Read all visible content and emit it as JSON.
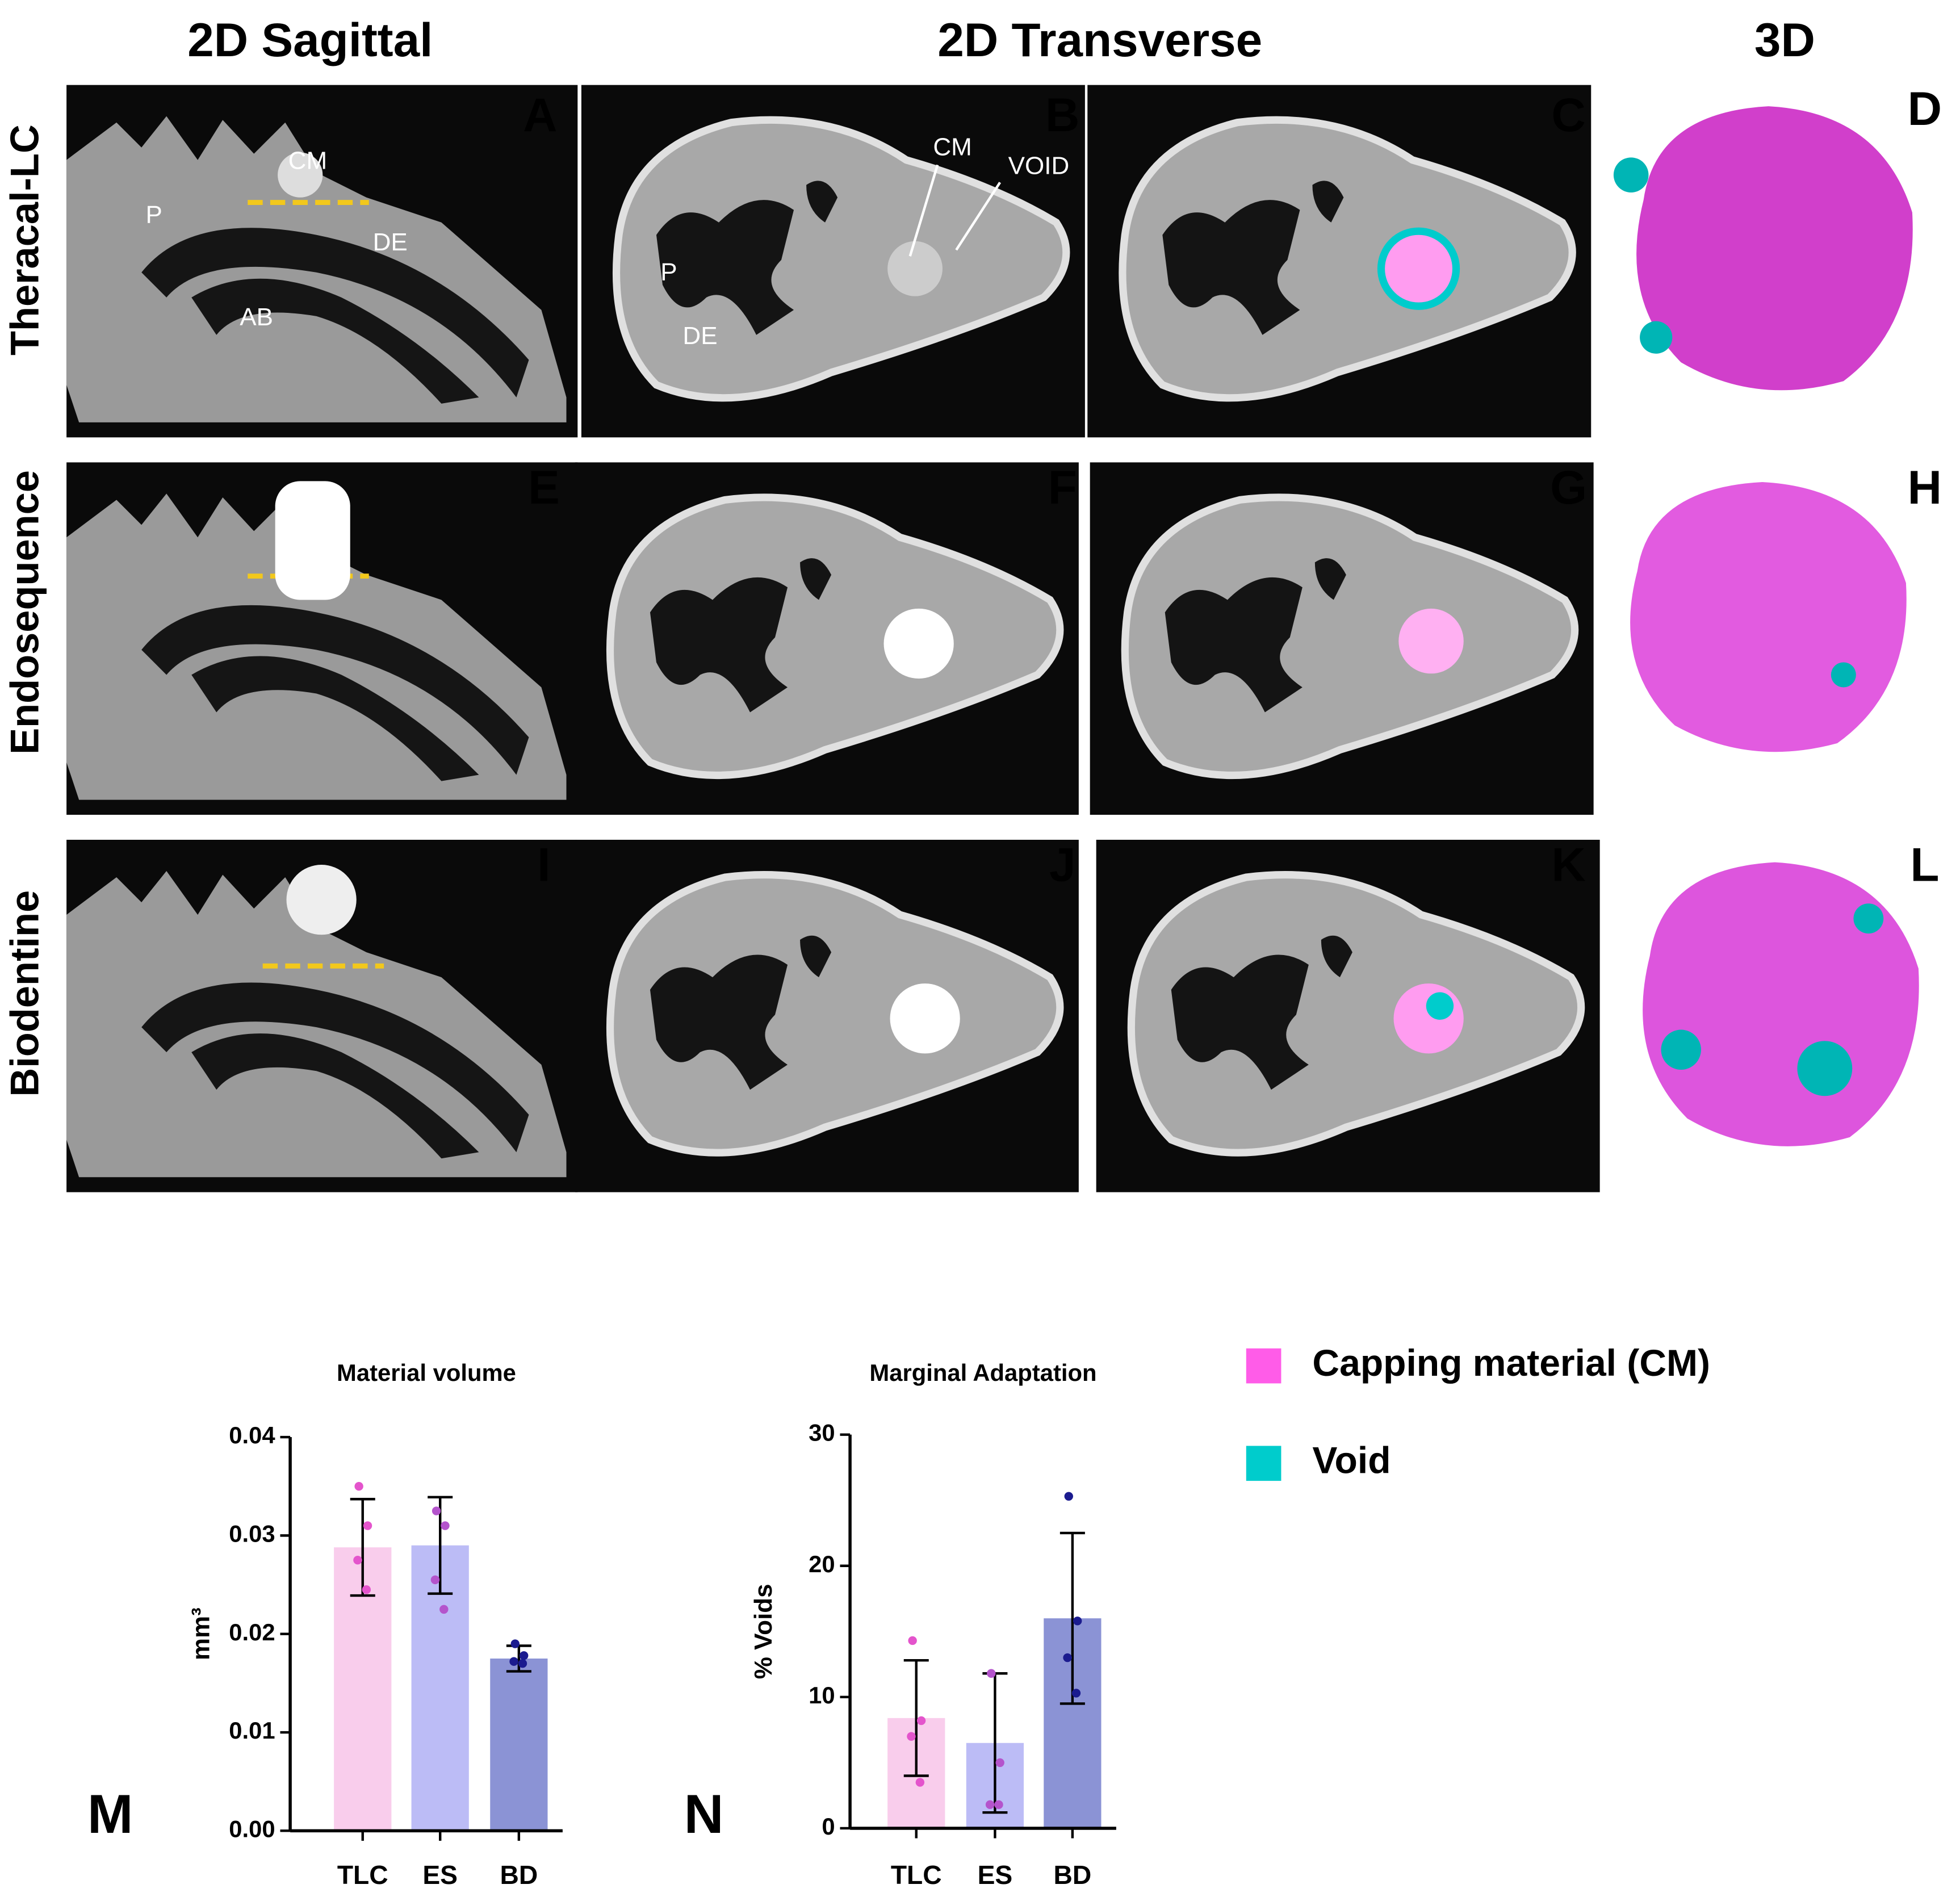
{
  "headers": [
    "2D Sagittal",
    "2D Transverse",
    "3D"
  ],
  "rows": [
    "Theracal-LC",
    "Endosequence",
    "Biodentine"
  ],
  "panels": [
    "A",
    "B",
    "C",
    "D",
    "E",
    "F",
    "G",
    "H",
    "I",
    "J",
    "K",
    "L"
  ],
  "annotations": {
    "sagittal": [
      "CM",
      "P",
      "DE",
      "AB"
    ],
    "transverse": [
      "CM",
      "VOID",
      "P",
      "DE"
    ]
  },
  "legend": {
    "items": [
      {
        "label": "Capping material (CM)",
        "color": "#ff5ce8"
      },
      {
        "label": "Void",
        "color": "#00cccc"
      }
    ]
  },
  "chart_data": [
    {
      "type": "bar",
      "panel": "M",
      "title": "Material volume",
      "y_label": "mm³",
      "categories": [
        "TLC",
        "ES",
        "BD"
      ],
      "values": [
        0.0288,
        0.029,
        0.0175
      ],
      "errors": [
        0.0049,
        0.0049,
        0.0013
      ],
      "points": [
        [
          0.035,
          0.031,
          0.0275,
          0.0245
        ],
        [
          0.0325,
          0.031,
          0.0255,
          0.0225
        ],
        [
          0.019,
          0.0178,
          0.0172,
          0.017
        ]
      ],
      "colors": [
        "#f9cdec",
        "#bcbcf6",
        "#8b93d5"
      ],
      "point_colors": [
        "#e454cc",
        "#b454cc",
        "#1b1b8f"
      ],
      "ylim": [
        0,
        0.04
      ],
      "yticks": [
        {
          "value": 0,
          "label": "0.00"
        },
        0.01,
        0.02,
        0.03,
        0.04
      ]
    },
    {
      "type": "bar",
      "panel": "N",
      "title": "Marginal Adaptation",
      "y_label": "% Voids",
      "categories": [
        "TLC",
        "ES",
        "BD"
      ],
      "values": [
        8.4,
        6.5,
        16.0
      ],
      "errors": [
        4.4,
        5.3,
        6.5
      ],
      "points": [
        [
          14.3,
          8.2,
          7.0,
          3.5
        ],
        [
          11.8,
          5.0,
          1.8,
          1.8
        ],
        [
          25.3,
          15.8,
          13.0,
          10.3
        ]
      ],
      "colors": [
        "#f9cdec",
        "#bcbcf6",
        "#8b93d5"
      ],
      "point_colors": [
        "#e454cc",
        "#b454cc",
        "#1b1b8f"
      ],
      "ylim": [
        0,
        30
      ],
      "yticks": [
        0,
        10,
        20,
        30
      ]
    }
  ]
}
